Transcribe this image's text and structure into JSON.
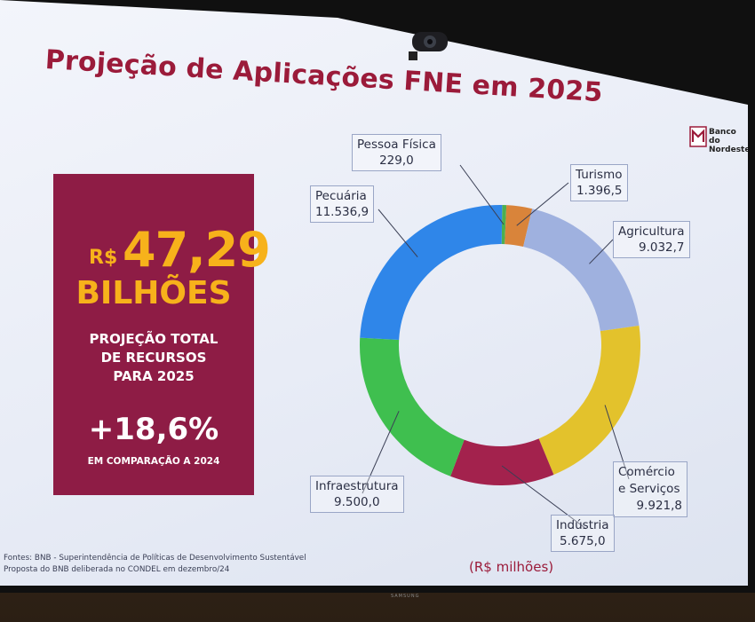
{
  "slide": {
    "title": "Projeção de Aplicações FNE em 2025",
    "logo_text": [
      "Banco do",
      "Nordeste"
    ],
    "footer_lines": [
      "Fontes: BNB - Superintendência de Políticas de Desenvolvimento Sustentável",
      "Proposta do BNB deliberada no CONDEL em dezembro/24"
    ],
    "unit_label": "(R$ milhões)",
    "monitor_brand": "SAMSUNG"
  },
  "promo": {
    "currency": "R$",
    "amount": "47,29",
    "unit": "BILHÕES",
    "desc_lines": [
      "PROJEÇÃO TOTAL",
      "DE RECURSOS",
      "PARA 2025"
    ],
    "growth": "+18,6%",
    "compare": "EM COMPARAÇÃO A 2024"
  },
  "chart_data": {
    "type": "pie",
    "donut": true,
    "unit": "R$ milhões",
    "slices": [
      {
        "name": "Pessoa Física",
        "value": 229.0,
        "label": "229,0",
        "color": "#4caf50"
      },
      {
        "name": "Turismo",
        "value": 1396.5,
        "label": "1.396,5",
        "color": "#d9843a"
      },
      {
        "name": "Agricultura",
        "value": 9032.7,
        "label": "9.032,7",
        "color": "#9fb1df"
      },
      {
        "name": "Comércio e Serviços",
        "value": 9921.8,
        "label": "9.921,8",
        "color": "#e3c22c"
      },
      {
        "name": "Indústria",
        "value": 5675.0,
        "label": "5.675,0",
        "color": "#a3224d"
      },
      {
        "name": "Infraestrutura",
        "value": 9500.0,
        "label": "9.500,0",
        "color": "#3fbf4f"
      },
      {
        "name": "Pecuária",
        "value": 11536.9,
        "label": "11.536,9",
        "color": "#2f86e9"
      }
    ]
  }
}
